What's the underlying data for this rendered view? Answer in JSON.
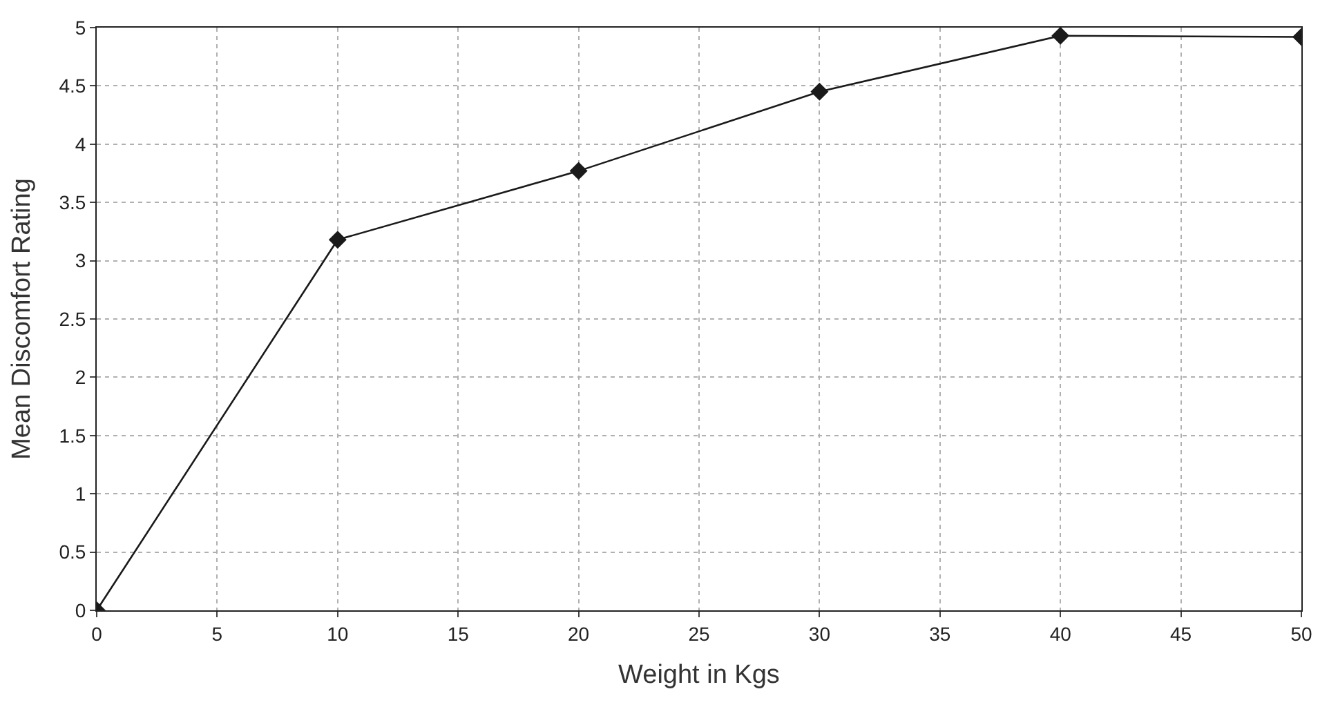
{
  "chart_data": {
    "type": "line",
    "xlabel": "Weight in Kgs",
    "ylabel": "Mean Discomfort Rating",
    "x": [
      0,
      10,
      20,
      30,
      40,
      50
    ],
    "series": [
      {
        "color": "#1a1a1a",
        "values": [
          0,
          3.18,
          3.77,
          4.45,
          4.93,
          4.92
        ]
      }
    ],
    "xlim": [
      0,
      50
    ],
    "xticks": [
      0,
      5,
      10,
      15,
      20,
      25,
      30,
      35,
      40,
      45,
      50
    ],
    "ylim": [
      0,
      5
    ],
    "yticks": [
      0,
      0.5,
      1,
      1.5,
      2,
      2.5,
      3,
      3.5,
      4,
      4.5,
      5
    ],
    "grid": true,
    "marker": "diamond",
    "line_style": "solid"
  }
}
